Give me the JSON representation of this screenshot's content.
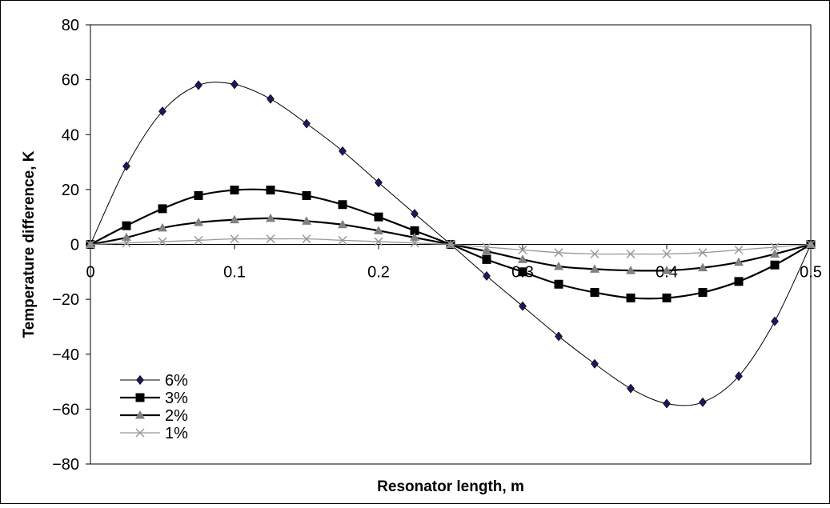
{
  "chart_data": {
    "type": "line",
    "title": "",
    "xlabel": "Resonator length, m",
    "ylabel": "Temperature difference, K",
    "xlim": [
      0,
      0.5
    ],
    "ylim": [
      -80,
      80
    ],
    "xticks": [
      "0",
      "0.1",
      "0.2",
      "0.3",
      "0.4",
      "0.5"
    ],
    "yticks": [
      "80",
      "60",
      "40",
      "20",
      "0",
      "−20",
      "−40",
      "−60",
      "−80"
    ],
    "grid": false,
    "legend_position": "bottom-left",
    "x": [
      0,
      0.025,
      0.05,
      0.075,
      0.1,
      0.125,
      0.15,
      0.175,
      0.2,
      0.225,
      0.25,
      0.275,
      0.3,
      0.325,
      0.35,
      0.375,
      0.4,
      0.425,
      0.45,
      0.475,
      0.5
    ],
    "series": [
      {
        "name": "6%",
        "marker": "diamond",
        "color": "#1a1a5e",
        "line_color": "#000000",
        "values": [
          0,
          28.5,
          48.5,
          58,
          58.3,
          53,
          44,
          34,
          22.5,
          11.2,
          0,
          -11.5,
          -22.5,
          -33.5,
          -43.5,
          -52.5,
          -58,
          -57.5,
          -48,
          -28,
          0
        ]
      },
      {
        "name": "3%",
        "marker": "square",
        "color": "#000000",
        "line_color": "#000000",
        "values": [
          0,
          6.8,
          13,
          17.8,
          19.8,
          19.8,
          17.8,
          14.5,
          10,
          5,
          0,
          -5.5,
          -10,
          -14.5,
          -17.5,
          -19.5,
          -19.5,
          -17.5,
          -13.5,
          -7.5,
          0
        ]
      },
      {
        "name": "2%",
        "marker": "triangle",
        "color": "#808080",
        "line_color": "#000000",
        "values": [
          0,
          2.5,
          6,
          8,
          9,
          9.5,
          8.5,
          7.2,
          5,
          2.5,
          0,
          -2.5,
          -5.5,
          -8,
          -9,
          -9.5,
          -9.5,
          -8.5,
          -6.5,
          -3.5,
          0
        ]
      },
      {
        "name": "1%",
        "marker": "x",
        "color": "#999999",
        "line_color": "#999999",
        "values": [
          0,
          0.5,
          1,
          1.5,
          2,
          2,
          2,
          1.5,
          1,
          0.5,
          0,
          -1,
          -2,
          -3,
          -3.5,
          -3.5,
          -3.5,
          -3,
          -2,
          -1,
          0
        ]
      }
    ]
  }
}
